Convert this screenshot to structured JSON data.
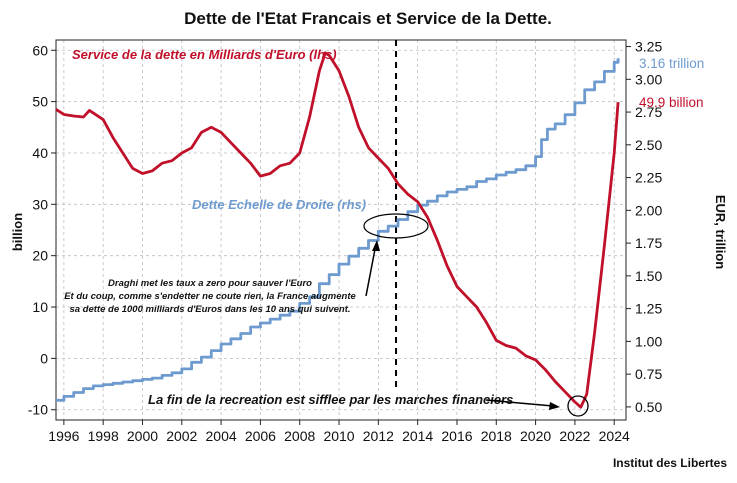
{
  "chart_data": {
    "type": "line",
    "title": "Dette de l'Etat Francais et Service de la Dette.",
    "ylabel_left": "billion",
    "ylabel_right": "EUR, trillion",
    "source": "Institut des Libertes",
    "xlim": [
      1995.6,
      2024.6
    ],
    "ylim_left": [
      -12,
      62
    ],
    "ylim_right": [
      0.4,
      3.3
    ],
    "x_ticks": [
      "1996",
      "1998",
      "2000",
      "2002",
      "2004",
      "2006",
      "2008",
      "2010",
      "2012",
      "2014",
      "2016",
      "2018",
      "2020",
      "2022",
      "2024"
    ],
    "y_left_ticks": [
      "-10",
      "0",
      "10",
      "20",
      "30",
      "40",
      "50",
      "60"
    ],
    "y_right_ticks": [
      "0.50",
      "0.75",
      "1.00",
      "1.25",
      "1.50",
      "1.75",
      "2.00",
      "2.25",
      "2.50",
      "2.75",
      "3.00",
      "3.25"
    ],
    "vline_x": 2012.9,
    "series": [
      {
        "name": "Service de la dette en Milliards d'Euro (lhs)",
        "axis": "left",
        "color": "#c0102a",
        "end_label": "49.9 billion",
        "x": [
          1995.6,
          1996.0,
          1996.5,
          1997.0,
          1997.3,
          1998.0,
          1998.5,
          1999.0,
          1999.5,
          2000.0,
          2000.5,
          2001.0,
          2001.5,
          2002.0,
          2002.5,
          2003.0,
          2003.5,
          2004.0,
          2004.5,
          2005.0,
          2005.5,
          2006.0,
          2006.5,
          2007.0,
          2007.5,
          2008.0,
          2008.5,
          2009.0,
          2009.3,
          2009.5,
          2010.0,
          2010.5,
          2011.0,
          2011.5,
          2012.0,
          2012.5,
          2013.0,
          2013.5,
          2014.0,
          2014.5,
          2015.0,
          2015.5,
          2016.0,
          2016.5,
          2017.0,
          2017.5,
          2018.0,
          2018.5,
          2019.0,
          2019.5,
          2020.0,
          2020.5,
          2021.0,
          2021.5,
          2022.0,
          2022.3,
          2022.6,
          2023.0,
          2023.5,
          2024.0,
          2024.2
        ],
        "values": [
          48.5,
          47.5,
          47.2,
          47.0,
          48.3,
          46.5,
          43,
          40,
          37,
          36,
          36.5,
          38,
          38.5,
          40,
          41,
          44,
          45,
          44,
          42,
          40,
          38,
          35.5,
          36,
          37.5,
          38,
          40,
          47,
          56,
          59.5,
          59.0,
          56,
          51,
          45,
          41,
          39,
          37,
          34,
          32,
          30.5,
          27.5,
          23,
          18,
          14,
          12,
          10,
          7,
          3.5,
          2.5,
          2,
          0.5,
          -0.3,
          -2.2,
          -4.5,
          -6.5,
          -8.5,
          -9.5,
          -7,
          5,
          22,
          40,
          49.9
        ]
      },
      {
        "name": "Dette Echelle de Droite  (rhs)",
        "axis": "right",
        "color": "#6e9bcf",
        "end_label": "3.16 trillion",
        "x": [
          1995.6,
          1996.0,
          1996.5,
          1997.0,
          1997.5,
          1998.0,
          1998.5,
          1999.0,
          1999.5,
          2000.0,
          2000.5,
          2001.0,
          2001.5,
          2002.0,
          2002.5,
          2003.0,
          2003.5,
          2004.0,
          2004.5,
          2005.0,
          2005.5,
          2006.0,
          2006.5,
          2007.0,
          2007.5,
          2008.0,
          2008.5,
          2009.0,
          2009.5,
          2010.0,
          2010.5,
          2011.0,
          2011.5,
          2012.0,
          2012.5,
          2013.0,
          2013.5,
          2014.0,
          2014.5,
          2015.0,
          2015.5,
          2016.0,
          2016.5,
          2017.0,
          2017.5,
          2018.0,
          2018.5,
          2019.0,
          2019.5,
          2020.0,
          2020.3,
          2020.6,
          2021.0,
          2021.5,
          2022.0,
          2022.5,
          2023.0,
          2023.5,
          2024.0,
          2024.2
        ],
        "values": [
          0.55,
          0.58,
          0.61,
          0.64,
          0.66,
          0.67,
          0.68,
          0.69,
          0.7,
          0.71,
          0.72,
          0.74,
          0.76,
          0.79,
          0.84,
          0.88,
          0.93,
          0.98,
          1.02,
          1.06,
          1.11,
          1.14,
          1.17,
          1.2,
          1.23,
          1.29,
          1.34,
          1.44,
          1.51,
          1.59,
          1.65,
          1.71,
          1.77,
          1.84,
          1.88,
          1.93,
          1.99,
          2.04,
          2.07,
          2.11,
          2.14,
          2.16,
          2.18,
          2.22,
          2.24,
          2.27,
          2.29,
          2.31,
          2.34,
          2.41,
          2.54,
          2.62,
          2.66,
          2.73,
          2.82,
          2.92,
          2.98,
          3.06,
          3.13,
          3.16
        ]
      }
    ],
    "annotations": {
      "draghi": [
        "Draghi met les taux a zero pour sauver l'Euro",
        "Et du coup, comme s'endetter ne coute rien, la France augmente",
        "sa dette de 1000 milliards d'Euros dans les 10 ans qui suivent."
      ],
      "recreation": "La fin de la recreation est sifflee par les marches financiers"
    }
  }
}
